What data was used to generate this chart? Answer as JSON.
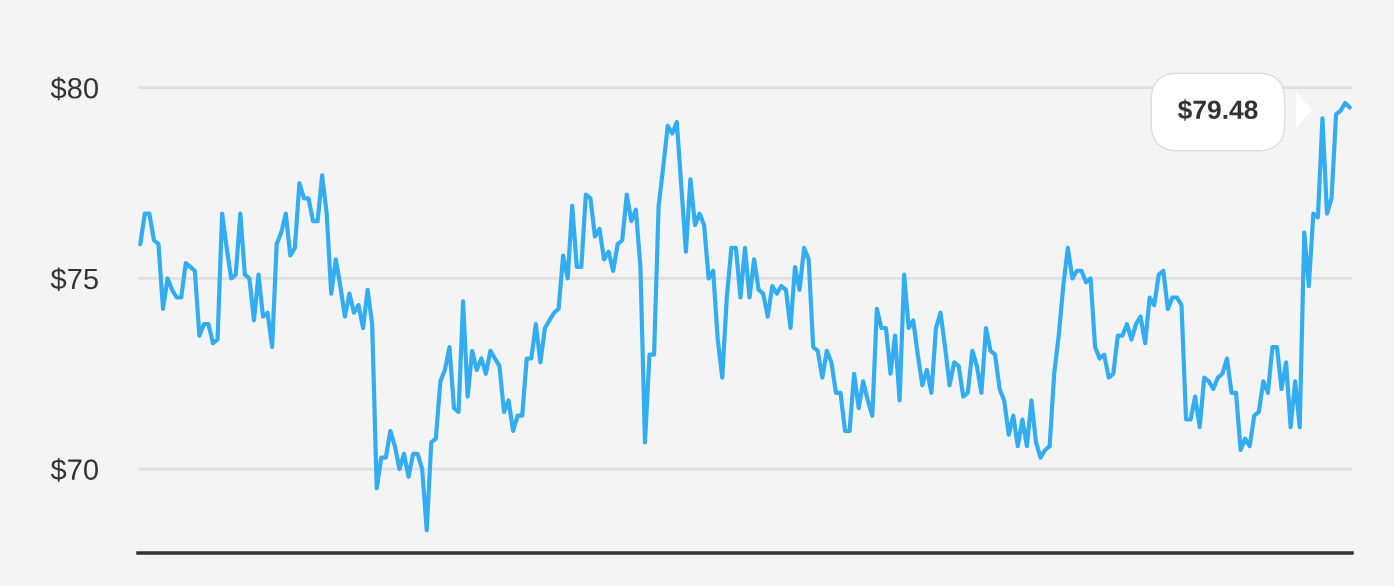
{
  "chart_data": {
    "type": "line",
    "categories": [
      null,
      null,
      null,
      null,
      null,
      null,
      null,
      null,
      null,
      null,
      null,
      null,
      null,
      null,
      null,
      null,
      null,
      null,
      null,
      null,
      null,
      null,
      null,
      null,
      null,
      null,
      null,
      null,
      null,
      null,
      null,
      null,
      null,
      null,
      null,
      null,
      null,
      null,
      null,
      null,
      null,
      null,
      null,
      null,
      null,
      null,
      null,
      null,
      null,
      null,
      null,
      null,
      null,
      null,
      null,
      null,
      null,
      null,
      null,
      null,
      null,
      null,
      null,
      null,
      null,
      null,
      null,
      null,
      null,
      null,
      null,
      null,
      null,
      null,
      null,
      null,
      null,
      null,
      null,
      null,
      null,
      null,
      null,
      null,
      null,
      null,
      null,
      null,
      null,
      null,
      null,
      null,
      null,
      null,
      null,
      null,
      null,
      null,
      null,
      null,
      null,
      null,
      null,
      null,
      null,
      null,
      null,
      null,
      null,
      null,
      null,
      null,
      null,
      null,
      null,
      null,
      null,
      null,
      null,
      null,
      null,
      null,
      null,
      null,
      null,
      null,
      null,
      null,
      null,
      null,
      null,
      null,
      null,
      null,
      null,
      null,
      null,
      null,
      null,
      null,
      null,
      null,
      null,
      null,
      null,
      null,
      null,
      null,
      null,
      null,
      null,
      null,
      null,
      null,
      null,
      null,
      null,
      null,
      null,
      null,
      null,
      null,
      null,
      null,
      null,
      null,
      null,
      null,
      null,
      null,
      null,
      null,
      null,
      null,
      null,
      null,
      null,
      null,
      null,
      null,
      null,
      null,
      null,
      null,
      null,
      null,
      null,
      null,
      null,
      null,
      null,
      null,
      null,
      null,
      null,
      null,
      null,
      null,
      null,
      null,
      null,
      null,
      null,
      null,
      null,
      null,
      null,
      null,
      null,
      null,
      null,
      null,
      null,
      null,
      null,
      null,
      null,
      null,
      null,
      null,
      null,
      null,
      null,
      null,
      null,
      null,
      null,
      null,
      null,
      null,
      null,
      null,
      null,
      null,
      null,
      null,
      null,
      null,
      null,
      null,
      null,
      null,
      null,
      null,
      null,
      null,
      null,
      null,
      null,
      null,
      null,
      null,
      null,
      null,
      null,
      null,
      null,
      null,
      null,
      null,
      null,
      null,
      null,
      null,
      null,
      null,
      null
    ],
    "series": [
      {
        "color": "#33adf2",
        "values": [
          75.9,
          76.7,
          76.7,
          76.0,
          75.9,
          74.2,
          75.0,
          74.7,
          74.5,
          74.5,
          75.4,
          75.3,
          75.2,
          73.5,
          73.8,
          73.8,
          73.3,
          73.4,
          76.7,
          75.8,
          75.0,
          75.1,
          76.7,
          75.1,
          75.0,
          73.9,
          75.1,
          74.0,
          74.1,
          73.2,
          75.9,
          76.2,
          76.7,
          75.6,
          75.8,
          77.5,
          77.1,
          77.1,
          76.5,
          76.5,
          77.7,
          76.7,
          74.6,
          75.5,
          74.8,
          74.0,
          74.6,
          74.1,
          74.3,
          73.7,
          74.7,
          73.8,
          69.5,
          70.3,
          70.3,
          71.0,
          70.6,
          70.0,
          70.4,
          69.8,
          70.4,
          70.4,
          70.0,
          68.4,
          70.7,
          70.8,
          72.3,
          72.6,
          73.2,
          71.6,
          71.5,
          74.4,
          71.9,
          73.1,
          72.6,
          72.9,
          72.5,
          73.1,
          72.9,
          72.7,
          71.5,
          71.8,
          71.0,
          71.4,
          71.4,
          72.9,
          72.9,
          73.8,
          72.8,
          73.7,
          73.9,
          74.1,
          74.2,
          75.6,
          75.0,
          76.9,
          75.3,
          75.3,
          77.2,
          77.1,
          76.1,
          76.3,
          75.5,
          75.7,
          75.2,
          75.9,
          76.0,
          77.2,
          76.5,
          76.8,
          75.3,
          70.7,
          73.0,
          73.0,
          76.9,
          77.9,
          79.0,
          78.8,
          79.1,
          77.4,
          75.7,
          77.6,
          76.4,
          76.7,
          76.4,
          75.0,
          75.2,
          73.4,
          72.4,
          74.5,
          75.8,
          75.8,
          74.5,
          75.8,
          74.5,
          75.5,
          74.7,
          74.6,
          74.0,
          74.8,
          74.6,
          74.8,
          74.7,
          73.7,
          75.3,
          74.7,
          75.8,
          75.5,
          73.2,
          73.1,
          72.4,
          73.1,
          72.8,
          72.0,
          72.0,
          71.0,
          71.0,
          72.5,
          71.6,
          72.3,
          71.8,
          71.4,
          74.2,
          73.7,
          73.7,
          72.5,
          73.5,
          71.8,
          75.1,
          73.7,
          73.9,
          73.0,
          72.2,
          72.6,
          72.0,
          73.7,
          74.1,
          73.2,
          72.2,
          72.8,
          72.7,
          71.9,
          72.0,
          73.1,
          72.7,
          72.0,
          73.7,
          73.1,
          73.0,
          72.1,
          71.8,
          70.9,
          71.4,
          70.6,
          71.3,
          70.6,
          71.8,
          70.7,
          70.3,
          70.5,
          70.6,
          72.5,
          73.5,
          74.8,
          75.8,
          75.0,
          75.2,
          75.2,
          74.9,
          75.0,
          73.2,
          72.9,
          73.0,
          72.4,
          72.5,
          73.5,
          73.5,
          73.8,
          73.4,
          73.8,
          74.0,
          73.3,
          74.5,
          74.3,
          75.1,
          75.2,
          74.2,
          74.5,
          74.5,
          74.3,
          71.3,
          71.3,
          71.9,
          71.1,
          72.4,
          72.3,
          72.1,
          72.4,
          72.5,
          72.9,
          72.0,
          72.0,
          70.5,
          70.8,
          70.6,
          71.4,
          71.5,
          72.3,
          72.0,
          73.2,
          73.2,
          72.1,
          72.8,
          71.1,
          72.3,
          71.1,
          76.2,
          74.8,
          76.7,
          76.6,
          79.2,
          76.7,
          77.1,
          79.3,
          79.4,
          79.6,
          79.48
        ]
      }
    ],
    "ylim": [
      67.8,
      82.3
    ],
    "yticks": [
      {
        "value": 70,
        "label": "$70"
      },
      {
        "value": 75,
        "label": "$75"
      },
      {
        "value": 80,
        "label": "$80"
      }
    ],
    "grid": "y",
    "tick_labels": "y",
    "legend": false,
    "marker": "none",
    "line_style": "solid",
    "annotations": [
      "$79.48"
    ]
  }
}
